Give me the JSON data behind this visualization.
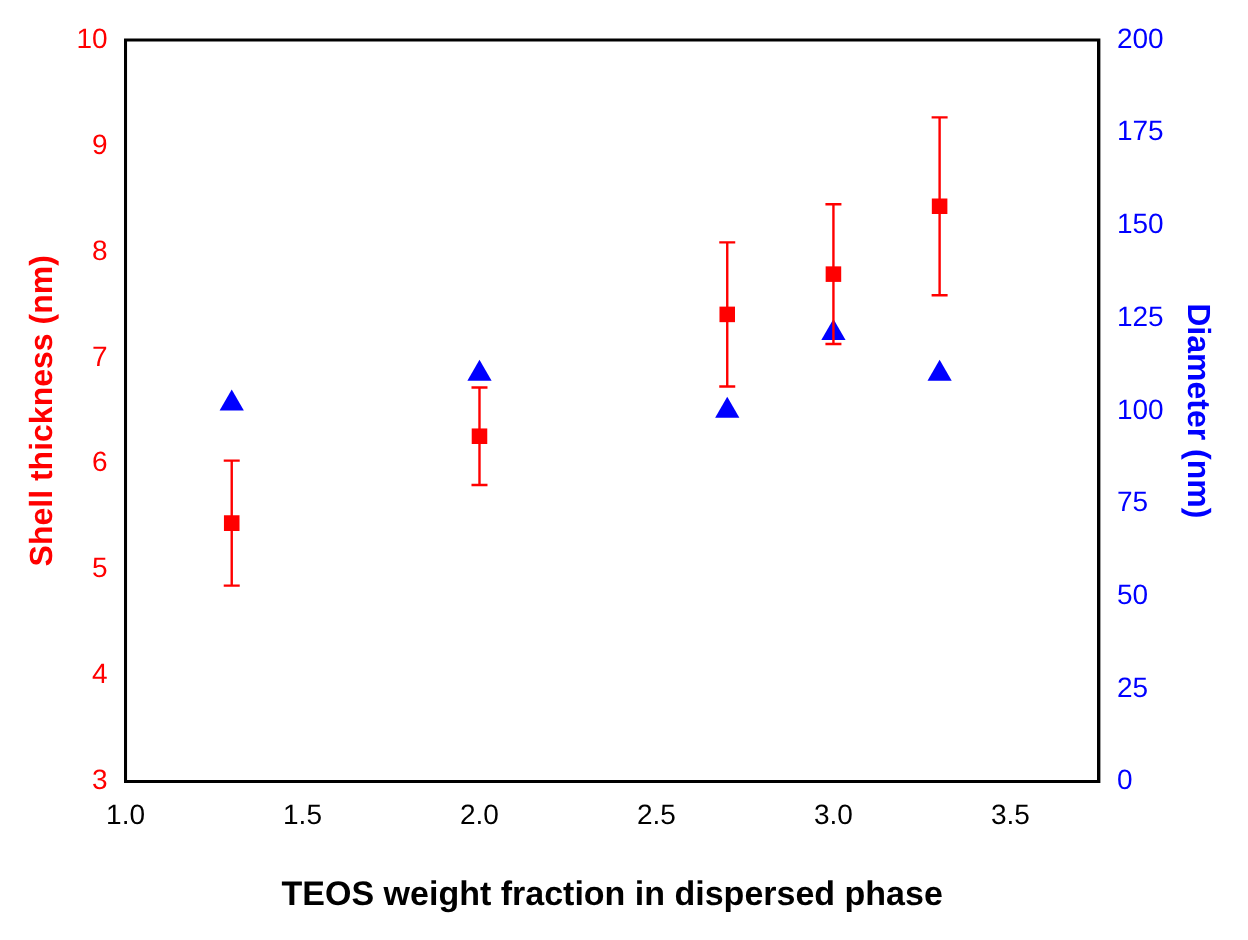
{
  "chart_data": {
    "type": "scatter",
    "xlabel": "TEOS weight fraction in dispersed phase",
    "ylabel": "Shell thickness (nm)",
    "y2label": "Diameter (nm)",
    "x": [
      1.3,
      2.0,
      2.7,
      3.0,
      3.3
    ],
    "series": [
      {
        "color": "#ff0000",
        "marker": "square",
        "values": [
          5.44,
          6.26,
          7.41,
          7.79,
          8.43
        ],
        "errors": [
          0.59,
          0.46,
          0.68,
          0.66,
          0.84
        ]
      },
      {
        "color": "#0000ff",
        "marker": "triangle",
        "axis": "y2",
        "values": [
          102,
          110,
          100,
          121,
          110
        ]
      }
    ],
    "xlim": [
      1.0,
      3.75
    ],
    "xticks": [
      {
        "value": 1.0,
        "label": "1.0"
      },
      {
        "value": 1.5,
        "label": "1.5"
      },
      {
        "value": 2.0,
        "label": "2.0"
      },
      {
        "value": 2.5,
        "label": "2.5"
      },
      {
        "value": 3.0,
        "label": "3.0"
      },
      {
        "value": 3.5,
        "label": "3.5"
      }
    ],
    "ylim": [
      3,
      10
    ],
    "yticks": [
      3,
      4,
      5,
      6,
      7,
      8,
      9,
      10
    ],
    "y2lim": [
      0,
      200
    ],
    "y2ticks": [
      0,
      25,
      50,
      75,
      100,
      125,
      150,
      175,
      200
    ],
    "grid": false,
    "legend": false
  }
}
